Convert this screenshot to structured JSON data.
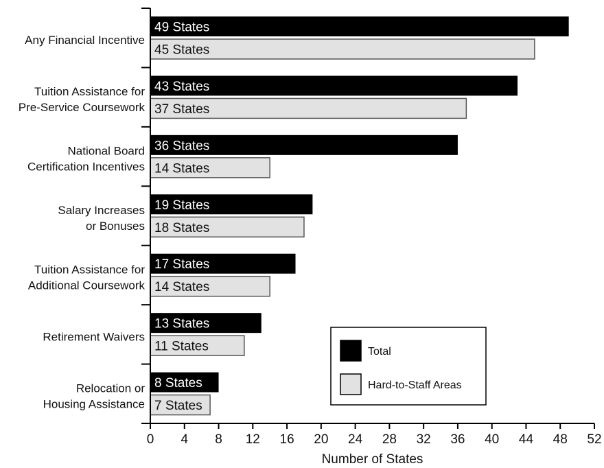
{
  "chart_data": {
    "type": "bar",
    "orientation": "horizontal",
    "categories": [
      [
        "Any Financial Incentive"
      ],
      [
        "Tuition Assistance for",
        "Pre-Service Coursework"
      ],
      [
        "National Board",
        "Certification Incentives"
      ],
      [
        "Salary Increases",
        "or Bonuses"
      ],
      [
        "Tuition Assistance for",
        "Additional Coursework"
      ],
      [
        "Retirement Waivers"
      ],
      [
        "Relocation or",
        "Housing Assistance"
      ]
    ],
    "series": [
      {
        "name": "Total",
        "color": "#000000",
        "values": [
          49,
          43,
          36,
          19,
          17,
          13,
          8
        ],
        "labels": [
          "49 States",
          "43 States",
          "36 States",
          "19 States",
          "17 States",
          "13 States",
          "8 States"
        ]
      },
      {
        "name": "Hard-to-Staff Areas",
        "color": "#e2e2e2",
        "values": [
          45,
          37,
          14,
          18,
          14,
          11,
          7
        ],
        "labels": [
          "45 States",
          "37 States",
          "14 States",
          "18 States",
          "14 States",
          "11 States",
          "7 States"
        ]
      }
    ],
    "title": "",
    "xlabel": "Number of States",
    "ylabel": "",
    "xlim": [
      0,
      52
    ],
    "xticks": [
      0,
      4,
      8,
      12,
      16,
      20,
      24,
      28,
      32,
      36,
      40,
      44,
      48,
      52
    ],
    "grid": false,
    "legend_position": "bottom-right"
  }
}
